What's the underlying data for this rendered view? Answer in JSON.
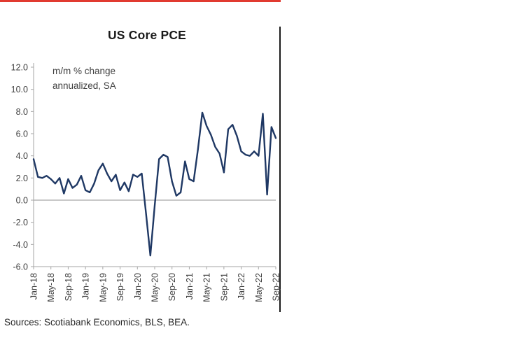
{
  "colors": {
    "line": "#1f3864",
    "accent_red": "#e13a30",
    "divider": "#1a1a1a",
    "axis": "#a6a6a6",
    "zero_line": "#a6a6a6",
    "tick_text": "#404040",
    "title_text": "#1a1a1a"
  },
  "chart_data": {
    "type": "line",
    "title": "US Core PCE",
    "unit_note_line1": "m/m % change",
    "unit_note_line2": "annualized, SA",
    "source": "Sources: Scotiabank Economics, BLS, BEA.",
    "frequency": "monthly",
    "x_start": "Jan-18",
    "x_end": "Sep-22",
    "ylim": [
      -6.0,
      12.0
    ],
    "y_tick_step": 2.0,
    "grid": "zero-line-only",
    "legend": "none",
    "x_tick_every": 4,
    "x_tick_labels": [
      "Jan-18",
      "May-18",
      "Sep-18",
      "Jan-19",
      "May-19",
      "Sep-19",
      "Jan-20",
      "May-20",
      "Sep-20",
      "Jan-21",
      "May-21",
      "Sep-21",
      "Jan-22",
      "May-22",
      "Sep-22"
    ],
    "series": [
      {
        "name": "US Core PCE m/m % change annualized SA",
        "values": [
          3.7,
          2.1,
          2.0,
          2.2,
          1.9,
          1.5,
          2.0,
          0.6,
          1.9,
          1.1,
          1.4,
          2.2,
          0.9,
          0.7,
          1.5,
          2.7,
          3.3,
          2.4,
          1.7,
          2.3,
          0.9,
          1.6,
          0.8,
          2.3,
          2.1,
          2.4,
          -1.2,
          -5.0,
          -0.5,
          3.7,
          4.1,
          3.9,
          1.7,
          0.4,
          0.7,
          3.5,
          1.9,
          1.7,
          4.6,
          7.9,
          6.7,
          5.9,
          4.8,
          4.2,
          2.5,
          6.4,
          6.8,
          5.8,
          4.4,
          4.1,
          4.0,
          4.4,
          4.0,
          7.8,
          0.5,
          6.6,
          5.6
        ]
      }
    ]
  }
}
